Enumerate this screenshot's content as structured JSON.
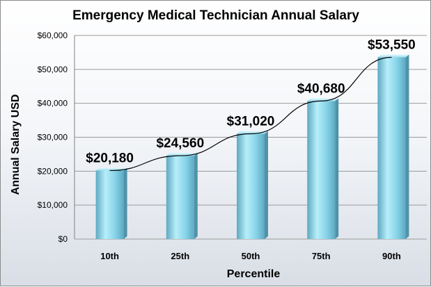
{
  "chart_data": {
    "type": "bar",
    "title": "Emergency Medical Technician Annual Salary",
    "xlabel": "Percentile",
    "ylabel": "Annual Salary  USD",
    "categories": [
      "10th",
      "25th",
      "50th",
      "75th",
      "90th"
    ],
    "values": [
      20180,
      24560,
      31020,
      40680,
      53550
    ],
    "data_labels": [
      "$20,180",
      "$24,560",
      "$31,020",
      "$40,680",
      "$53,550"
    ],
    "ylim": [
      0,
      60000
    ],
    "yticks": [
      0,
      10000,
      20000,
      30000,
      40000,
      50000,
      60000
    ],
    "ytick_labels": [
      "$0",
      "$10,000",
      "$20,000",
      "$30,000",
      "$40,000",
      "$50,000",
      "$60,000"
    ],
    "grid": true,
    "trendline": true,
    "colors": {
      "bar_light": "#b7eefa",
      "bar_mid": "#86d3e8",
      "bar_dark": "#5ea9c1",
      "grid": "#9a9a9a"
    }
  }
}
